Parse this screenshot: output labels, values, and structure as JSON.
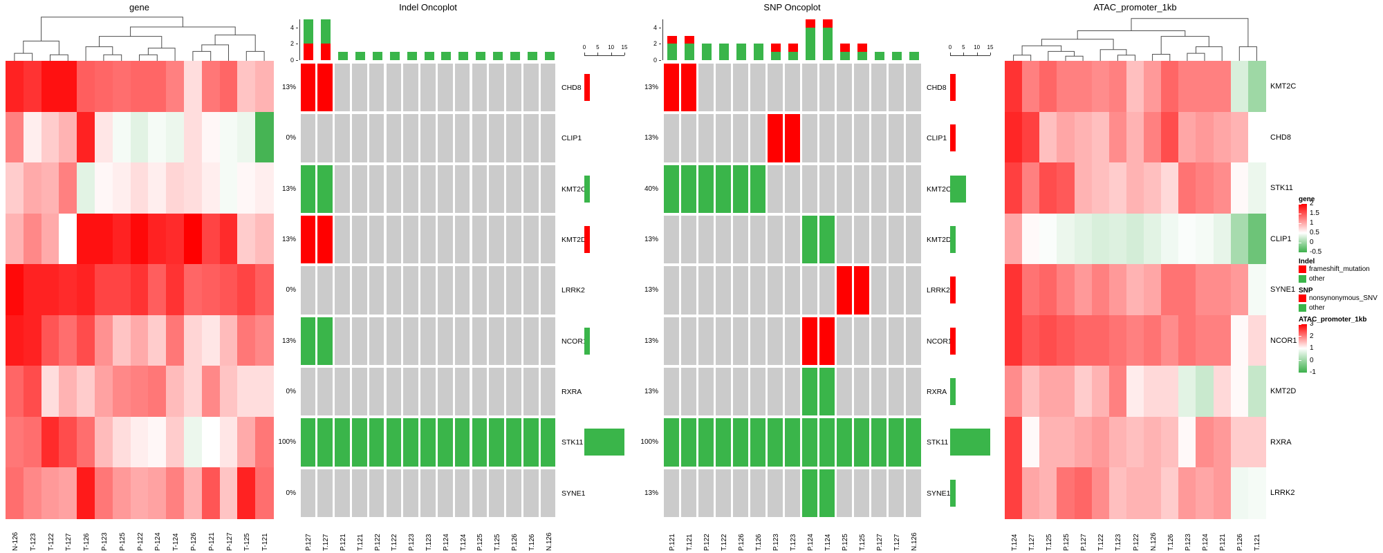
{
  "chart_data": {
    "type": "heatmap",
    "colors": {
      "mutation_red": "#FF0000",
      "mutation_green": "#3AB54A",
      "background_gray": "#CBCBCB",
      "heat_red": "#FF0000",
      "heat_green": "#3CB04B",
      "dendro_gray": "#4D4D4D"
    },
    "panels": {
      "gene": {
        "title": "gene",
        "columns": [
          "N-126",
          "T-123",
          "T-122",
          "T-127",
          "T-126",
          "P-123",
          "P-125",
          "P-122",
          "P-124",
          "T-124",
          "P-126",
          "P-121",
          "P-127",
          "T-125",
          "T-121"
        ],
        "rows": [
          "CHD8",
          "CLIP1",
          "KMT2C",
          "KMT2D",
          "LRRK2",
          "NCOR1",
          "RXRA",
          "STK11",
          "SYNE1"
        ],
        "scale": {
          "min": -0.5,
          "white": 0.5,
          "max": 2
        },
        "matrix": [
          [
            1.8,
            1.7,
            1.9,
            1.9,
            1.45,
            1.4,
            1.35,
            1.4,
            1.4,
            1.25,
            0.7,
            1.3,
            1.4,
            0.85,
            0.95
          ],
          [
            1.25,
            0.6,
            0.8,
            0.95,
            1.8,
            0.65,
            0.45,
            0.35,
            0.45,
            0.4,
            0.7,
            0.55,
            0.45,
            0.4,
            -0.45
          ],
          [
            0.8,
            1.0,
            0.95,
            1.25,
            0.35,
            0.55,
            0.6,
            0.7,
            0.6,
            0.75,
            0.7,
            0.6,
            0.45,
            0.55,
            0.6
          ],
          [
            0.95,
            1.2,
            1.0,
            0.5,
            1.9,
            1.9,
            1.8,
            1.95,
            1.8,
            1.75,
            2.0,
            1.6,
            1.75,
            0.8,
            0.9
          ],
          [
            1.95,
            1.8,
            1.8,
            1.75,
            1.8,
            1.6,
            1.6,
            1.7,
            1.45,
            1.7,
            1.4,
            1.45,
            1.5,
            1.6,
            1.45
          ],
          [
            1.85,
            1.8,
            1.5,
            1.35,
            1.55,
            1.15,
            0.85,
            1.0,
            0.8,
            1.3,
            0.75,
            0.65,
            0.9,
            1.3,
            1.2
          ],
          [
            1.4,
            1.55,
            0.7,
            0.95,
            0.8,
            1.05,
            1.2,
            1.25,
            1.3,
            0.9,
            0.75,
            1.2,
            0.85,
            0.7,
            0.7
          ],
          [
            1.3,
            1.35,
            1.75,
            1.55,
            1.35,
            0.9,
            0.7,
            0.6,
            0.55,
            0.8,
            0.4,
            0.5,
            0.65,
            1.0,
            1.3
          ],
          [
            1.35,
            1.2,
            1.1,
            1.05,
            1.85,
            1.3,
            1.1,
            1.0,
            1.05,
            1.25,
            0.95,
            1.5,
            0.85,
            1.8,
            1.35
          ]
        ],
        "dendrogram": [
          [
            [
              0,
              1,
              0.16
            ],
            [
              2,
              3,
              0.13
            ],
            0.42
          ],
          [
            [
              [
                4,
                [
                  5,
                  6,
                  0.13
                ],
                0.3
              ],
              [
                [
                  7,
                  8,
                  0.13
                ],
                9,
                0.27
              ],
              0.52
            ],
            [
              [
                [
                  10,
                  11,
                  0.2
                ],
                12,
                0.34
              ],
              [
                13,
                14,
                0.2
              ],
              0.55
            ],
            0.72
          ],
          0.93
        ]
      },
      "indel": {
        "title": "Indel Oncoplot",
        "columns": [
          "P.127",
          "T.127",
          "P.121",
          "T.121",
          "P.122",
          "T.122",
          "P.123",
          "T.123",
          "P.124",
          "T.124",
          "P.125",
          "T.125",
          "P.126",
          "T.126",
          "N.126"
        ],
        "genes": [
          "CHD8",
          "CLIP1",
          "KMT2C",
          "KMT2D",
          "LRRK2",
          "NCOR1",
          "RXRA",
          "STK11",
          "SYNE1"
        ],
        "percents": [
          "13%",
          "0%",
          "13%",
          "13%",
          "0%",
          "13%",
          "0%",
          "100%",
          "0%"
        ],
        "cells": [
          [
            1,
            1,
            0,
            0,
            0,
            0,
            0,
            0,
            0,
            0,
            0,
            0,
            0,
            0,
            0
          ],
          [
            0,
            0,
            0,
            0,
            0,
            0,
            0,
            0,
            0,
            0,
            0,
            0,
            0,
            0,
            0
          ],
          [
            2,
            2,
            0,
            0,
            0,
            0,
            0,
            0,
            0,
            0,
            0,
            0,
            0,
            0,
            0
          ],
          [
            1,
            1,
            0,
            0,
            0,
            0,
            0,
            0,
            0,
            0,
            0,
            0,
            0,
            0,
            0
          ],
          [
            0,
            0,
            0,
            0,
            0,
            0,
            0,
            0,
            0,
            0,
            0,
            0,
            0,
            0,
            0
          ],
          [
            2,
            2,
            0,
            0,
            0,
            0,
            0,
            0,
            0,
            0,
            0,
            0,
            0,
            0,
            0
          ],
          [
            0,
            0,
            0,
            0,
            0,
            0,
            0,
            0,
            0,
            0,
            0,
            0,
            0,
            0,
            0
          ],
          [
            2,
            2,
            2,
            2,
            2,
            2,
            2,
            2,
            2,
            2,
            2,
            2,
            2,
            2,
            2
          ],
          [
            0,
            0,
            0,
            0,
            0,
            0,
            0,
            0,
            0,
            0,
            0,
            0,
            0,
            0,
            0
          ]
        ],
        "top_bars_red_green": [
          [
            2,
            3
          ],
          [
            2,
            3
          ],
          [
            0,
            1
          ],
          [
            0,
            1
          ],
          [
            0,
            1
          ],
          [
            0,
            1
          ],
          [
            0,
            1
          ],
          [
            0,
            1
          ],
          [
            0,
            1
          ],
          [
            0,
            1
          ],
          [
            0,
            1
          ],
          [
            0,
            1
          ],
          [
            0,
            1
          ],
          [
            0,
            1
          ],
          [
            0,
            1
          ]
        ],
        "stack_bottom": "red",
        "top_axis_ticks": [
          0,
          2,
          4
        ],
        "top_axis_max": 5,
        "right_bars": [
          {
            "color": "red",
            "value": 2
          },
          null,
          {
            "color": "green",
            "value": 2
          },
          {
            "color": "red",
            "value": 2
          },
          null,
          {
            "color": "green",
            "value": 2
          },
          null,
          {
            "color": "green",
            "value": 15
          },
          null
        ],
        "right_axis_ticks": [
          0,
          5,
          10,
          15
        ]
      },
      "snp": {
        "title": "SNP Oncoplot",
        "columns": [
          "P.121",
          "T.121",
          "P.122",
          "T.122",
          "P.126",
          "T.126",
          "P.123",
          "T.123",
          "P.124",
          "T.124",
          "P.125",
          "T.125",
          "P.127",
          "T.127",
          "N.126"
        ],
        "genes": [
          "CHD8",
          "CLIP1",
          "KMT2C",
          "KMT2D",
          "LRRK2",
          "NCOR1",
          "RXRA",
          "STK11",
          "SYNE1"
        ],
        "percents": [
          "13%",
          "13%",
          "40%",
          "13%",
          "13%",
          "13%",
          "13%",
          "100%",
          "13%"
        ],
        "cells": [
          [
            1,
            1,
            0,
            0,
            0,
            0,
            0,
            0,
            0,
            0,
            0,
            0,
            0,
            0,
            0
          ],
          [
            0,
            0,
            0,
            0,
            0,
            0,
            1,
            1,
            0,
            0,
            0,
            0,
            0,
            0,
            0
          ],
          [
            2,
            2,
            2,
            2,
            2,
            2,
            0,
            0,
            0,
            0,
            0,
            0,
            0,
            0,
            0
          ],
          [
            0,
            0,
            0,
            0,
            0,
            0,
            0,
            0,
            2,
            2,
            0,
            0,
            0,
            0,
            0
          ],
          [
            0,
            0,
            0,
            0,
            0,
            0,
            0,
            0,
            0,
            0,
            1,
            1,
            0,
            0,
            0
          ],
          [
            0,
            0,
            0,
            0,
            0,
            0,
            0,
            0,
            1,
            1,
            0,
            0,
            0,
            0,
            0
          ],
          [
            0,
            0,
            0,
            0,
            0,
            0,
            0,
            0,
            2,
            2,
            0,
            0,
            0,
            0,
            0
          ],
          [
            2,
            2,
            2,
            2,
            2,
            2,
            2,
            2,
            2,
            2,
            2,
            2,
            2,
            2,
            2
          ],
          [
            0,
            0,
            0,
            0,
            0,
            0,
            0,
            0,
            2,
            2,
            0,
            0,
            0,
            0,
            0
          ]
        ],
        "top_bars_red_green": [
          [
            1,
            2
          ],
          [
            1,
            2
          ],
          [
            0,
            2
          ],
          [
            0,
            2
          ],
          [
            0,
            2
          ],
          [
            0,
            2
          ],
          [
            1,
            1
          ],
          [
            1,
            1
          ],
          [
            1,
            4
          ],
          [
            1,
            4
          ],
          [
            1,
            1
          ],
          [
            1,
            1
          ],
          [
            0,
            1
          ],
          [
            0,
            1
          ],
          [
            0,
            1
          ]
        ],
        "stack_bottom": "green",
        "top_axis_ticks": [
          0,
          2,
          4
        ],
        "top_axis_max": 5,
        "right_bars": [
          {
            "color": "red",
            "value": 2
          },
          {
            "color": "red",
            "value": 2
          },
          {
            "color": "green",
            "value": 6
          },
          {
            "color": "green",
            "value": 2
          },
          {
            "color": "red",
            "value": 2
          },
          {
            "color": "red",
            "value": 2
          },
          {
            "color": "green",
            "value": 2
          },
          {
            "color": "green",
            "value": 15
          },
          {
            "color": "green",
            "value": 2
          }
        ],
        "right_axis_ticks": [
          0,
          5,
          10,
          15
        ]
      },
      "atac": {
        "title": "ATAC_promoter_1kb",
        "columns": [
          "T.124",
          "T.127",
          "T.125",
          "P.125",
          "P.127",
          "T.122",
          "T.123",
          "P.122",
          "N.126",
          "T.126",
          "P.123",
          "P.124",
          "P.121",
          "P.126",
          "T.121"
        ],
        "rows": [
          "KMT2C",
          "CHD8",
          "STK11",
          "CLIP1",
          "SYNE1",
          "NCOR1",
          "KMT2D",
          "RXRA",
          "LRRK2"
        ],
        "scale": {
          "min": -1,
          "white": 1,
          "max": 3
        },
        "matrix": [
          [
            2.6,
            2.0,
            2.2,
            2.0,
            2.0,
            1.9,
            2.0,
            1.5,
            1.8,
            2.2,
            2.0,
            2.0,
            2.0,
            0.6,
            0.0
          ],
          [
            2.7,
            2.5,
            1.5,
            1.7,
            1.6,
            1.5,
            1.9,
            1.6,
            2.0,
            2.4,
            1.7,
            1.8,
            1.7,
            1.6,
            1.0
          ],
          [
            2.5,
            2.0,
            2.4,
            2.3,
            1.6,
            1.5,
            1.4,
            1.6,
            1.5,
            1.3,
            2.1,
            2.0,
            1.9,
            1.05,
            0.8
          ],
          [
            1.7,
            1.05,
            0.95,
            0.8,
            0.7,
            0.6,
            0.65,
            0.55,
            0.7,
            0.85,
            0.95,
            0.9,
            0.75,
            0.1,
            -0.5
          ],
          [
            2.6,
            2.1,
            2.2,
            2.0,
            1.8,
            2.0,
            1.8,
            1.6,
            1.7,
            2.1,
            2.1,
            1.9,
            1.9,
            1.8,
            0.9
          ],
          [
            2.6,
            2.3,
            2.4,
            2.3,
            2.2,
            2.2,
            2.1,
            2.0,
            2.1,
            1.9,
            2.1,
            2.0,
            2.0,
            1.05,
            1.3
          ],
          [
            1.9,
            1.5,
            1.7,
            1.7,
            1.4,
            1.6,
            2.0,
            1.15,
            1.3,
            1.3,
            0.7,
            0.45,
            1.3,
            1.05,
            0.4
          ],
          [
            2.5,
            1.05,
            1.6,
            1.6,
            1.7,
            1.8,
            1.6,
            1.5,
            1.6,
            1.5,
            1.05,
            1.9,
            1.8,
            1.4,
            1.4
          ],
          [
            2.5,
            1.7,
            1.6,
            2.1,
            2.2,
            1.9,
            1.5,
            1.6,
            1.6,
            1.4,
            1.8,
            1.7,
            1.8,
            0.85,
            0.9
          ]
        ],
        "dendrogram": [
          [
            [
              [
                [
                  0,
                  1,
                  0.12
                ],
                [
                  2,
                  [
                    3,
                    4,
                    0.1
                  ],
                  0.2
                ],
                0.32
              ],
              [
                5,
                [
                  6,
                  7,
                  0.12
                ],
                0.24
              ],
              0.46
            ],
            [
              [
                8,
                9,
                0.14
              ],
              [
                [
                  10,
                  11,
                  0.16
                ],
                12,
                0.3
              ],
              0.52
            ],
            0.64
          ],
          [
            13,
            14,
            0.3
          ],
          0.9
        ]
      }
    },
    "legend": {
      "gene": {
        "title": "gene",
        "ticks": [
          "2",
          "1.5",
          "1",
          "0.5",
          "0",
          "-0.5"
        ],
        "white_pos_pct": 60
      },
      "indel": {
        "title": "Indel",
        "items": [
          {
            "color": "#FF0000",
            "label": "frameshift_mutation"
          },
          {
            "color": "#3AB54A",
            "label": "other"
          }
        ]
      },
      "snp": {
        "title": "SNP",
        "items": [
          {
            "color": "#FF0000",
            "label": "nonsynonymous_SNV"
          },
          {
            "color": "#3AB54A",
            "label": "other"
          }
        ]
      },
      "atac": {
        "title": "ATAC_promoter_1kb",
        "ticks": [
          "3",
          "2",
          "1",
          "0",
          "-1"
        ],
        "white_pos_pct": 50
      }
    }
  }
}
